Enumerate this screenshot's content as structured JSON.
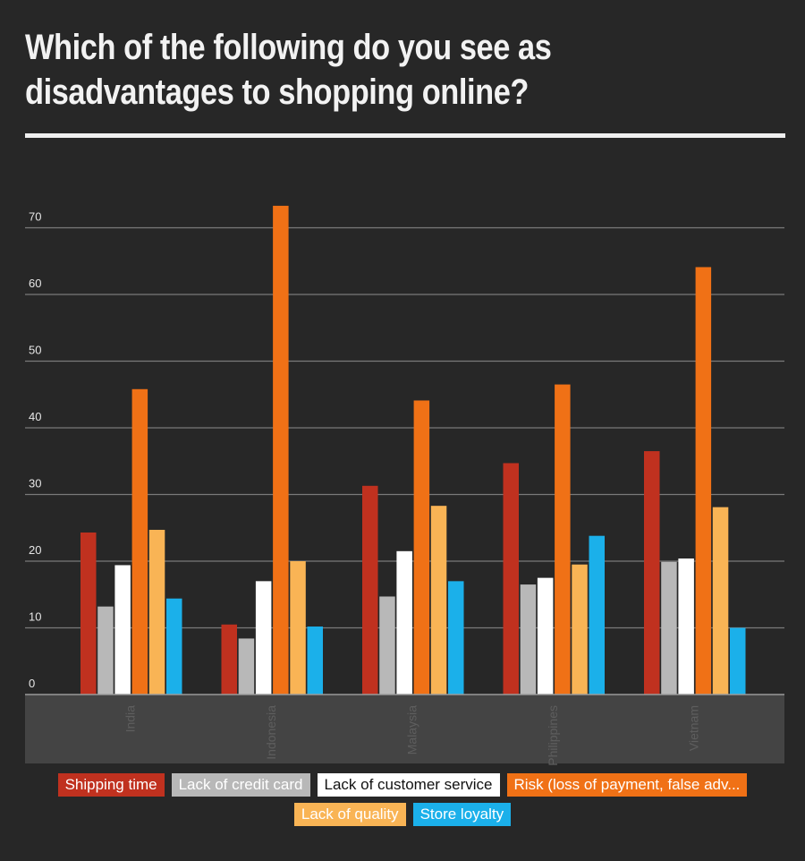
{
  "title_line1": "Which of the following do you see as",
  "title_line2": "disadvantages to shopping online?",
  "chart_data": {
    "type": "bar",
    "title": "Which of the following do you see as disadvantages to shopping online?",
    "categories": [
      "India",
      "Indonesia",
      "Malaysia",
      "Philippines",
      "Vietnam"
    ],
    "series": [
      {
        "name": "Shipping time",
        "color": "#c0311f",
        "text_color": "#ffffff",
        "values": [
          24.3,
          10.5,
          31.3,
          34.7,
          36.5
        ]
      },
      {
        "name": "Lack of credit card",
        "color": "#b8b8b8",
        "text_color": "#ffffff",
        "values": [
          13.2,
          8.4,
          14.7,
          16.5,
          19.9
        ]
      },
      {
        "name": "Lack of customer service",
        "color": "#ffffff",
        "text_color": "#111111",
        "values": [
          19.4,
          17.0,
          21.5,
          17.5,
          20.4
        ]
      },
      {
        "name": "Risk (loss of payment, false adv...",
        "color": "#f07116",
        "text_color": "#ffffff",
        "values": [
          45.8,
          73.3,
          44.1,
          46.5,
          64.1
        ]
      },
      {
        "name": "Lack of quality",
        "color": "#f9b455",
        "text_color": "#ffffff",
        "values": [
          24.7,
          20.0,
          28.3,
          19.5,
          28.1
        ]
      },
      {
        "name": "Store loyalty",
        "color": "#1bb0ea",
        "text_color": "#ffffff",
        "values": [
          14.4,
          10.2,
          17.0,
          23.8,
          10.0
        ]
      }
    ],
    "y_ticks": [
      0,
      10,
      20,
      30,
      40,
      50,
      60,
      70
    ],
    "ylim": [
      0,
      75
    ],
    "grid": true,
    "legend_position": "bottom",
    "xlabel": "",
    "ylabel": ""
  }
}
